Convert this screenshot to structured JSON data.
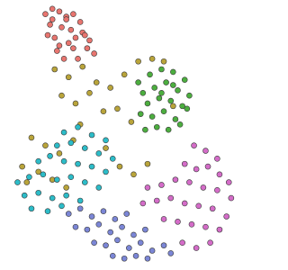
{
  "chart_data": {
    "type": "scatter",
    "xlim": [
      0,
      10
    ],
    "ylim": [
      0,
      10
    ],
    "marker_edge_color": "#3a3a3a",
    "series": [
      {
        "color": "#e8756f",
        "x": [
          1.8,
          2.1,
          2.4,
          2.7,
          3.0,
          3.3,
          2.0,
          2.5,
          2.9,
          3.4,
          3.7,
          2.2,
          2.8,
          3.1,
          3.6,
          3.9,
          2.3,
          2.6,
          3.2,
          1.9,
          2.4,
          3.0,
          2.7,
          3.5,
          2.1
        ],
        "y": [
          9.6,
          9.8,
          9.7,
          9.5,
          9.6,
          9.3,
          9.2,
          9.1,
          9.0,
          8.9,
          8.6,
          8.7,
          8.5,
          8.7,
          8.3,
          8.1,
          8.2,
          7.9,
          7.9,
          8.8,
          8.4,
          8.3,
          9.4,
          8.8,
          9.4
        ]
      },
      {
        "color": "#b9a43a",
        "x": [
          2.2,
          2.8,
          3.4,
          4.0,
          4.6,
          5.2,
          5.8,
          6.4,
          2.5,
          3.1,
          3.7,
          4.3,
          4.9,
          5.5,
          6.9,
          1.2,
          1.8,
          2.4,
          3.0,
          0.8,
          1.5,
          2.1,
          2.7,
          5.0,
          5.6,
          6.2,
          4.4,
          3.3,
          7.3,
          1.0
        ],
        "y": [
          7.5,
          7.2,
          7.6,
          7.0,
          6.8,
          7.3,
          7.8,
          7.9,
          6.5,
          6.2,
          6.6,
          5.9,
          6.0,
          5.5,
          7.8,
          4.9,
          4.6,
          4.3,
          4.8,
          3.8,
          3.6,
          3.3,
          3.0,
          3.8,
          3.5,
          3.9,
          4.5,
          5.4,
          6.1,
          3.2
        ]
      },
      {
        "color": "#4cae3f",
        "x": [
          5.8,
          6.3,
          6.8,
          7.3,
          7.8,
          6.0,
          6.5,
          7.0,
          7.5,
          8.0,
          6.2,
          6.7,
          7.2,
          7.7,
          5.9,
          6.4,
          6.9,
          7.4,
          6.6,
          7.1,
          7.6,
          6.1,
          7.9,
          6.8,
          7.3
        ],
        "y": [
          7.0,
          7.3,
          7.5,
          7.4,
          7.1,
          6.6,
          6.8,
          7.0,
          6.7,
          6.5,
          6.2,
          6.4,
          6.3,
          6.1,
          5.8,
          5.7,
          5.9,
          5.6,
          5.3,
          5.2,
          5.4,
          5.2,
          6.0,
          6.6,
          6.9
        ]
      },
      {
        "color": "#2cbcc8",
        "x": [
          2.6,
          3.2,
          3.8,
          4.4,
          2.3,
          2.9,
          3.5,
          4.1,
          4.7,
          1.5,
          2.0,
          2.6,
          3.2,
          3.8,
          4.4,
          0.6,
          1.1,
          1.7,
          2.3,
          2.9,
          3.5,
          4.1,
          0.9,
          1.5,
          2.1,
          2.7,
          3.3,
          1.2,
          1.9,
          2.5
        ],
        "y": [
          5.1,
          5.3,
          5.0,
          4.8,
          4.6,
          4.7,
          4.5,
          4.3,
          4.1,
          4.0,
          4.2,
          4.0,
          3.9,
          3.8,
          3.6,
          3.2,
          3.4,
          3.5,
          3.3,
          3.4,
          3.2,
          3.0,
          2.7,
          2.8,
          2.6,
          2.7,
          2.5,
          2.2,
          2.1,
          2.3
        ]
      },
      {
        "color": "#d46cc8",
        "x": [
          8.2,
          8.7,
          9.2,
          7.8,
          8.3,
          8.8,
          9.3,
          9.7,
          6.2,
          6.8,
          7.4,
          8.0,
          8.6,
          9.2,
          9.8,
          6.0,
          6.6,
          7.2,
          7.8,
          8.4,
          9.0,
          9.6,
          6.9,
          7.5,
          8.1,
          8.7,
          9.3,
          7.7,
          8.3,
          8.9
        ],
        "y": [
          4.6,
          4.4,
          4.1,
          3.9,
          3.7,
          3.8,
          3.5,
          3.2,
          3.0,
          3.1,
          3.3,
          3.2,
          3.0,
          2.9,
          2.6,
          2.4,
          2.5,
          2.6,
          2.4,
          2.3,
          2.2,
          1.9,
          1.8,
          1.7,
          1.6,
          1.5,
          1.4,
          0.9,
          0.7,
          0.9
        ]
      },
      {
        "color": "#7b86d6",
        "x": [
          2.8,
          3.3,
          3.8,
          4.3,
          4.8,
          5.3,
          3.1,
          3.6,
          4.1,
          4.6,
          5.1,
          5.6,
          6.1,
          3.9,
          4.4,
          4.9,
          5.4,
          5.9,
          6.4,
          6.9,
          4.7,
          5.2,
          5.7,
          6.2,
          7.2
        ],
        "y": [
          2.0,
          2.2,
          1.9,
          2.1,
          1.8,
          2.0,
          1.5,
          1.4,
          1.6,
          1.3,
          1.5,
          1.2,
          1.4,
          0.9,
          0.8,
          1.0,
          0.7,
          0.9,
          0.6,
          0.8,
          0.4,
          0.3,
          0.4,
          0.3,
          0.5
        ]
      }
    ]
  }
}
